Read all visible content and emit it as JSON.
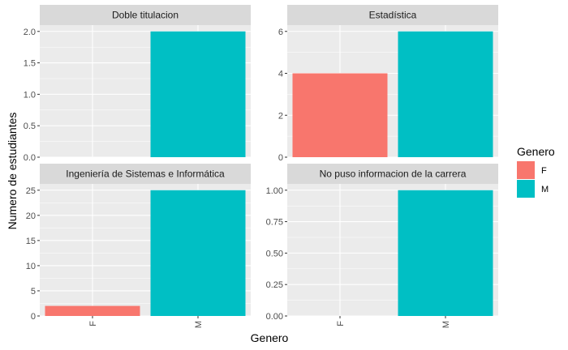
{
  "chart_data": {
    "type": "bar",
    "facets": [
      {
        "title": "Doble titulacion",
        "categories": [
          "F",
          "M"
        ],
        "values": [
          0,
          2
        ],
        "ylim": [
          0,
          2.1
        ],
        "yticks": [
          0,
          0.5,
          1,
          1.5,
          2
        ],
        "ytick_labels": [
          "0.0",
          "0.5",
          "1.0",
          "1.5",
          "2.0"
        ]
      },
      {
        "title": "Estadística",
        "categories": [
          "F",
          "M"
        ],
        "values": [
          4,
          6
        ],
        "ylim": [
          0,
          6.3
        ],
        "yticks": [
          0,
          2,
          4,
          6
        ],
        "ytick_labels": [
          "0",
          "2",
          "4",
          "6"
        ]
      },
      {
        "title": "Ingeniería de Sistemas e Informática",
        "categories": [
          "F",
          "M"
        ],
        "values": [
          2,
          25
        ],
        "ylim": [
          0,
          26.25
        ],
        "yticks": [
          0,
          5,
          10,
          15,
          20,
          25
        ],
        "ytick_labels": [
          "0",
          "5",
          "10",
          "15",
          "20",
          "25"
        ]
      },
      {
        "title": "No puso informacion de la carrera",
        "categories": [
          "F",
          "M"
        ],
        "values": [
          0,
          1
        ],
        "ylim": [
          0,
          1.05
        ],
        "yticks": [
          0,
          0.25,
          0.5,
          0.75,
          1
        ],
        "ytick_labels": [
          "0.00",
          "0.25",
          "0.50",
          "0.75",
          "1.00"
        ]
      }
    ],
    "xlabel": "Genero",
    "ylabel": "Numero de estudiantes",
    "x_tick_labels": [
      "F",
      "M"
    ],
    "legend": {
      "title": "Genero",
      "entries": [
        {
          "label": "F",
          "color": "#F8766D"
        },
        {
          "label": "M",
          "color": "#00BFC4"
        }
      ],
      "placement": "right"
    },
    "grid": true,
    "colors": {
      "F": "#F8766D",
      "M": "#00BFC4",
      "panel": "#EBEBEB",
      "strip": "#D9D9D9",
      "grid": "#FFFFFF"
    }
  }
}
